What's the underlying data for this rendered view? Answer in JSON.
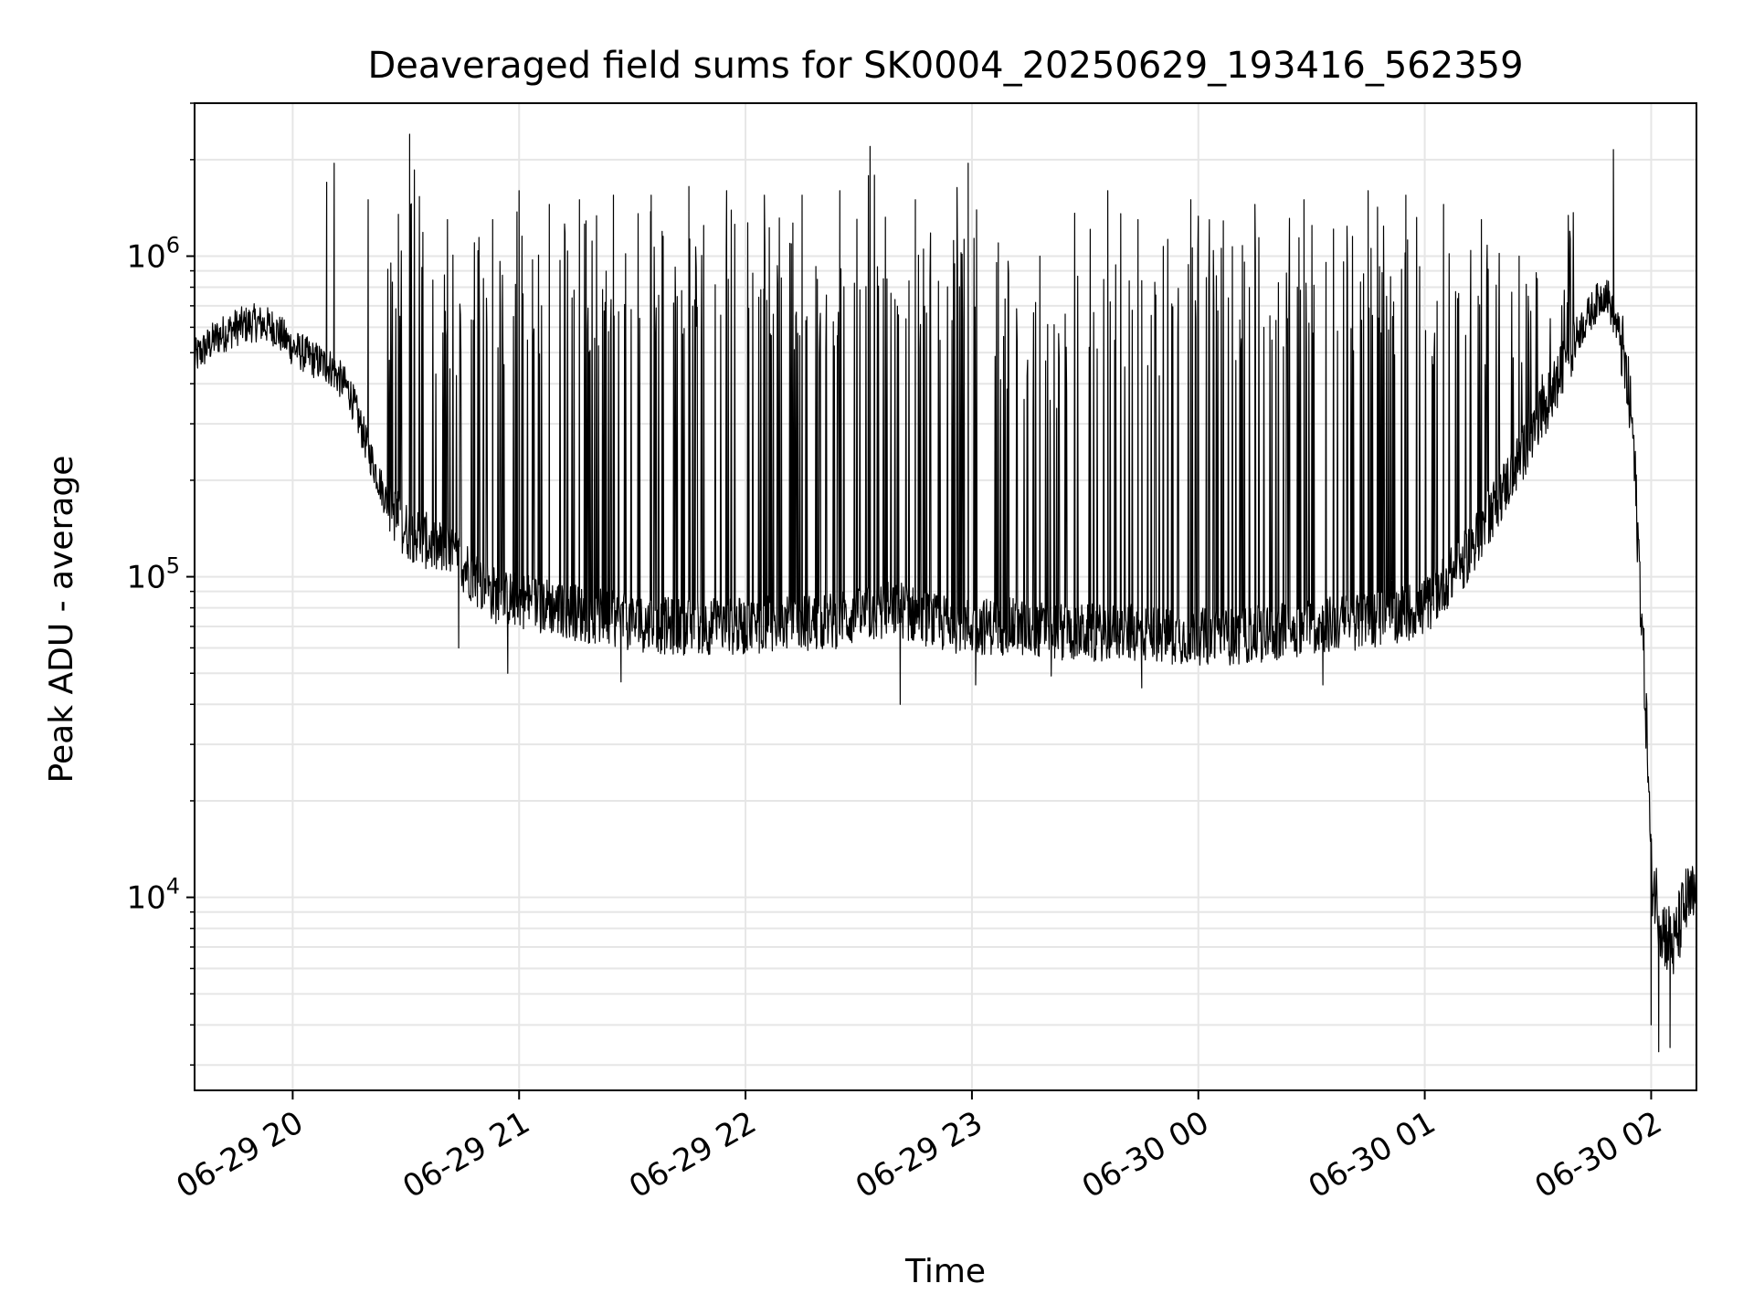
{
  "chart_data": {
    "type": "line",
    "title": "Deaveraged field sums for SK0004_20250629_193416_562359",
    "xlabel": "Time",
    "ylabel": "Peak ADU - average",
    "yscale": "log",
    "grid": true,
    "legend": "none",
    "line_color": "#000000",
    "grid_color": "#e6e6e6",
    "xlim": [
      "06-29 19:34",
      "06-30 02:12"
    ],
    "ylim": [
      2500,
      3000000
    ],
    "x_ticks": [
      {
        "label": "06-29 20",
        "time": "06-29 20:00"
      },
      {
        "label": "06-29 21",
        "time": "06-29 21:00"
      },
      {
        "label": "06-29 22",
        "time": "06-29 22:00"
      },
      {
        "label": "06-29 23",
        "time": "06-29 23:00"
      },
      {
        "label": "06-30 00",
        "time": "06-30 00:00"
      },
      {
        "label": "06-30 01",
        "time": "06-30 01:00"
      },
      {
        "label": "06-30 02",
        "time": "06-30 02:00"
      }
    ],
    "y_ticks": [
      {
        "base": "10",
        "exp": "4",
        "value": 10000
      },
      {
        "base": "10",
        "exp": "5",
        "value": 100000
      },
      {
        "base": "10",
        "exp": "6",
        "value": 1000000
      }
    ],
    "series": [
      {
        "x": [
          "06-29 19:34",
          "06-29 19:40",
          "06-29 19:45",
          "06-29 19:50",
          "06-29 19:55",
          "06-29 20:00",
          "06-29 20:05",
          "06-29 20:10",
          "06-29 20:15",
          "06-29 20:20",
          "06-29 20:25",
          "06-29 20:30",
          "06-29 20:35",
          "06-29 20:40",
          "06-29 20:45",
          "06-29 20:50",
          "06-29 20:55",
          "06-29 21:00",
          "06-29 21:10",
          "06-29 21:20",
          "06-29 21:30",
          "06-29 21:40",
          "06-29 21:50",
          "06-29 22:00",
          "06-29 22:10",
          "06-29 22:20",
          "06-29 22:30",
          "06-29 22:40",
          "06-29 22:50",
          "06-29 23:00",
          "06-29 23:10",
          "06-29 23:20",
          "06-29 23:30",
          "06-29 23:40",
          "06-29 23:50",
          "06-30 00:00",
          "06-30 00:10",
          "06-30 00:20",
          "06-30 00:30",
          "06-30 00:40",
          "06-30 00:50",
          "06-30 01:00",
          "06-30 01:05",
          "06-30 01:10",
          "06-30 01:15",
          "06-30 01:20",
          "06-30 01:25",
          "06-30 01:30",
          "06-30 01:35",
          "06-30 01:40",
          "06-30 01:45",
          "06-30 01:48",
          "06-30 01:52",
          "06-30 01:55",
          "06-30 01:57",
          "06-30 01:59",
          "06-30 02:00",
          "06-30 02:03",
          "06-30 02:06",
          "06-30 02:09",
          "06-30 02:12"
        ],
        "y": [
          480000,
          560000,
          600000,
          620000,
          600000,
          520000,
          480000,
          450000,
          380000,
          250000,
          170000,
          140000,
          130000,
          120000,
          110000,
          95000,
          85000,
          85000,
          80000,
          75000,
          72000,
          70000,
          70000,
          70000,
          72000,
          72000,
          75000,
          80000,
          72000,
          70000,
          70000,
          68000,
          67000,
          67000,
          66000,
          65000,
          65000,
          67000,
          70000,
          72000,
          75000,
          80000,
          95000,
          110000,
          140000,
          180000,
          230000,
          300000,
          400000,
          560000,
          700000,
          780000,
          550000,
          300000,
          100000,
          30000,
          12000,
          8000,
          7000,
          9500,
          10000
        ]
      }
    ],
    "spike_peaks": [
      {
        "x": "06-29 20:09",
        "y": 1700000
      },
      {
        "x": "06-29 20:11",
        "y": 1950000
      },
      {
        "x": "06-29 20:20",
        "y": 1500000
      },
      {
        "x": "06-29 20:28",
        "y": 1350000
      },
      {
        "x": "06-29 20:31",
        "y": 2400000
      },
      {
        "x": "06-29 20:41",
        "y": 1300000
      },
      {
        "x": "06-29 20:53",
        "y": 1300000
      },
      {
        "x": "06-29 21:00",
        "y": 1600000
      },
      {
        "x": "06-29 21:08",
        "y": 1450000
      },
      {
        "x": "06-29 21:16",
        "y": 1500000
      },
      {
        "x": "06-29 21:25",
        "y": 1550000
      },
      {
        "x": "06-29 21:35",
        "y": 1550000
      },
      {
        "x": "06-29 21:45",
        "y": 1650000
      },
      {
        "x": "06-29 21:55",
        "y": 1600000
      },
      {
        "x": "06-29 22:05",
        "y": 1550000
      },
      {
        "x": "06-29 22:15",
        "y": 1550000
      },
      {
        "x": "06-29 22:25",
        "y": 1600000
      },
      {
        "x": "06-29 22:33",
        "y": 2200000
      },
      {
        "x": "06-29 22:45",
        "y": 1500000
      },
      {
        "x": "06-29 22:59",
        "y": 1950000
      },
      {
        "x": "06-29 23:07",
        "y": 1100000
      },
      {
        "x": "06-29 23:18",
        "y": 1000000
      },
      {
        "x": "06-29 23:36",
        "y": 1600000
      },
      {
        "x": "06-29 23:44",
        "y": 1300000
      },
      {
        "x": "06-29 23:58",
        "y": 1500000
      },
      {
        "x": "06-30 00:15",
        "y": 1450000
      },
      {
        "x": "06-30 00:28",
        "y": 1500000
      },
      {
        "x": "06-30 00:45",
        "y": 1600000
      },
      {
        "x": "06-30 00:55",
        "y": 1550000
      },
      {
        "x": "06-30 01:05",
        "y": 1450000
      },
      {
        "x": "06-30 01:15",
        "y": 1300000
      },
      {
        "x": "06-30 01:25",
        "y": 1000000
      },
      {
        "x": "06-30 01:50",
        "y": 2150000
      }
    ],
    "dip_troughs": [
      {
        "x": "06-29 20:44",
        "y": 60000
      },
      {
        "x": "06-29 20:57",
        "y": 50000
      },
      {
        "x": "06-29 21:27",
        "y": 47000
      },
      {
        "x": "06-29 22:41",
        "y": 40000
      },
      {
        "x": "06-29 23:01",
        "y": 46000
      },
      {
        "x": "06-29 23:21",
        "y": 49000
      },
      {
        "x": "06-29 23:45",
        "y": 45000
      },
      {
        "x": "06-30 00:33",
        "y": 46000
      },
      {
        "x": "06-30 02:00",
        "y": 4000
      },
      {
        "x": "06-30 02:02",
        "y": 3300
      },
      {
        "x": "06-30 02:05",
        "y": 3400
      }
    ]
  }
}
